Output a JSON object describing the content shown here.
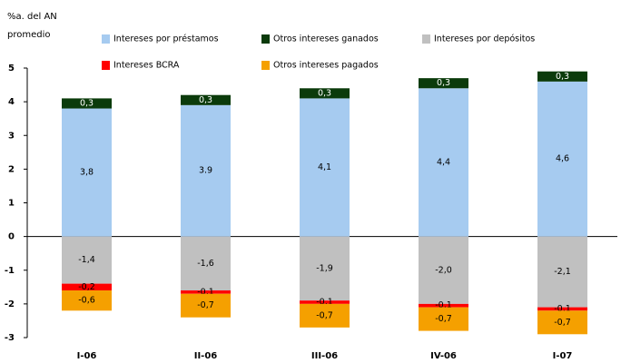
{
  "chart_data": {
    "type": "stacked_bar",
    "y_label": [
      "%a. del AN",
      "promedio"
    ],
    "categories": [
      "I-06",
      "II-06",
      "III-06",
      "IV-06",
      "I-07"
    ],
    "series": [
      {
        "name": "Intereses por préstamos",
        "color": "#a6cbf0",
        "values": [
          3.8,
          3.9,
          4.1,
          4.4,
          4.6
        ],
        "value_labels": [
          "3,8",
          "3.9",
          "4,1",
          "4,4",
          "4,6"
        ]
      },
      {
        "name": "Otros intereses ganados",
        "color": "#0b3b0b",
        "values": [
          0.3,
          0.3,
          0.3,
          0.3,
          0.3
        ],
        "value_labels": [
          "0,3",
          "0,3",
          "0,3",
          "0,3",
          "0,3"
        ]
      },
      {
        "name": "Intereses por depósitos",
        "color": "#c0c0c0",
        "values": [
          -1.4,
          -1.6,
          -1.9,
          -2.0,
          -2.1
        ],
        "value_labels": [
          "-1,4",
          "-1,6",
          "-1,9",
          "-2,0",
          "-2,1"
        ]
      },
      {
        "name": "Intereses BCRA",
        "color": "#ff0000",
        "values": [
          -0.2,
          -0.1,
          -0.1,
          -0.1,
          -0.1
        ],
        "value_labels": [
          "-0,2",
          "-0,1",
          "-0,1",
          "-0,1",
          "-0,1"
        ]
      },
      {
        "name": "Otros intereses pagados",
        "color": "#f5a000",
        "values": [
          -0.6,
          -0.7,
          -0.7,
          -0.7,
          -0.7
        ],
        "value_labels": [
          "-0,6",
          "-0,7",
          "-0,7",
          "-0,7",
          "-0,7"
        ]
      }
    ],
    "ylim": [
      -3,
      5
    ],
    "yticks": [
      -3,
      -2,
      -1,
      0,
      1,
      2,
      3,
      4,
      5
    ]
  }
}
